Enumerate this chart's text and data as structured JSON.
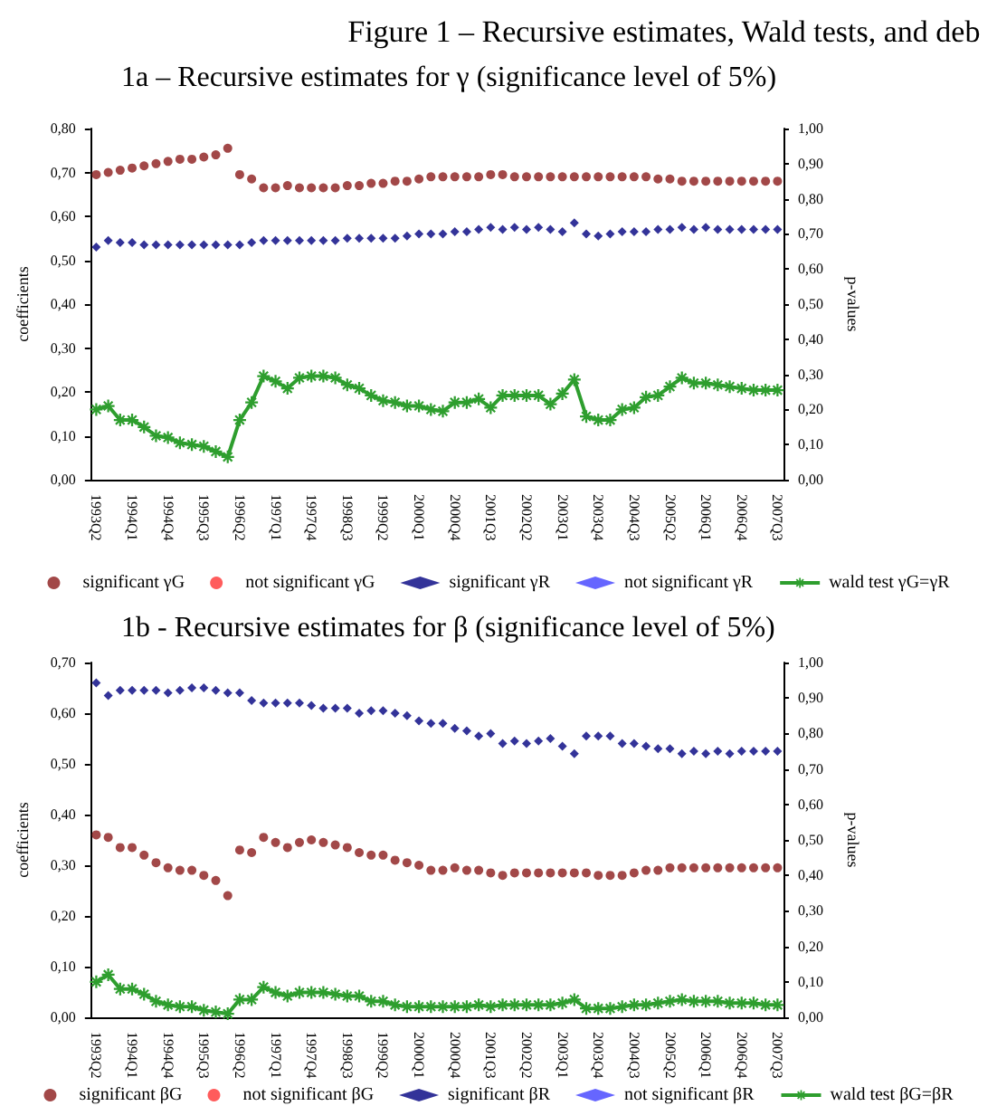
{
  "chart_data": [
    {
      "type": "scatter",
      "title": "Figure 1 – Recursive estimates, Wald tests, and deb",
      "subtitle": "1a – Recursive estimates for γ (significance level of 5%)",
      "ylabel": "coefficients",
      "y2label": "p-values",
      "legend": "bottom",
      "categories": [
        "1993Q2",
        null,
        null,
        "1994Q1",
        null,
        null,
        "1994Q4",
        null,
        null,
        "1995Q3",
        null,
        null,
        "1996Q2",
        null,
        null,
        "1997Q1",
        null,
        null,
        "1997Q4",
        null,
        null,
        "1998Q3",
        null,
        null,
        "1999Q2",
        null,
        null,
        "2000Q1",
        null,
        null,
        "2000Q4",
        null,
        null,
        "2001Q3",
        null,
        null,
        "2002Q2",
        null,
        null,
        "2003Q1",
        null,
        null,
        "2003Q4",
        null,
        null,
        "2004Q3",
        null,
        null,
        "2005Q2",
        null,
        null,
        "2006Q1",
        null,
        null,
        "2006Q4",
        null,
        null,
        "2007Q3"
      ],
      "ylim": [
        0,
        0.8
      ],
      "yticks": [
        {
          "value": 0,
          "label": "0,00"
        },
        {
          "value": 0.1,
          "label": "0,10"
        },
        {
          "value": 0.2,
          "label": "0,20"
        },
        {
          "value": 0.3,
          "label": "0,30"
        },
        {
          "value": 0.4,
          "label": "0,40"
        },
        {
          "value": 0.5,
          "label": "0,50"
        },
        {
          "value": 0.6,
          "label": "0,60"
        },
        {
          "value": 0.7,
          "label": "0,70"
        },
        {
          "value": 0.8,
          "label": "0,80"
        }
      ],
      "y2lim": [
        0,
        1
      ],
      "y2ticks": [
        {
          "value": 0,
          "label": "0,00"
        },
        {
          "value": 0.1,
          "label": "0,10"
        },
        {
          "value": 0.2,
          "label": "0,20"
        },
        {
          "value": 0.3,
          "label": "0,30"
        },
        {
          "value": 0.4,
          "label": "0,40"
        },
        {
          "value": 0.5,
          "label": "0,50"
        },
        {
          "value": 0.6,
          "label": "0,60"
        },
        {
          "value": 0.7,
          "label": "0,70"
        },
        {
          "value": 0.8,
          "label": "0,80"
        },
        {
          "value": 0.9,
          "label": "0,90"
        },
        {
          "value": 1,
          "label": "1,00"
        }
      ],
      "series": [
        {
          "name": "significant γG",
          "type": "scatter",
          "marker": "circle",
          "color": "#8b1a1a",
          "values": [
            0.695,
            0.7,
            0.705,
            0.71,
            0.715,
            0.72,
            0.725,
            0.73,
            0.73,
            0.735,
            0.74,
            0.755,
            0.695,
            0.685,
            0.665,
            0.665,
            0.67,
            0.665,
            0.665,
            0.665,
            0.665,
            0.67,
            0.67,
            0.675,
            0.675,
            0.68,
            0.68,
            0.685,
            0.69,
            0.69,
            0.69,
            0.69,
            0.69,
            0.695,
            0.695,
            0.69,
            0.69,
            0.69,
            0.69,
            0.69,
            0.69,
            0.69,
            0.69,
            0.69,
            0.69,
            0.69,
            0.69,
            0.685,
            0.685,
            0.68,
            0.68,
            0.68,
            0.68,
            0.68,
            0.68,
            0.68,
            0.68,
            0.68
          ]
        },
        {
          "name": "not significant γG",
          "type": "scatter",
          "marker": "circle",
          "color": "#ff3333",
          "values": [
            null,
            null,
            null,
            null,
            null,
            null,
            null,
            null,
            null,
            null,
            null,
            null,
            null,
            null,
            null,
            null,
            null,
            null,
            null,
            null,
            null,
            null,
            null,
            null,
            null,
            null,
            null,
            null,
            null,
            null,
            null,
            null,
            null,
            null,
            null,
            null,
            null,
            null,
            null,
            null,
            null,
            null,
            null,
            null,
            null,
            null,
            null,
            null,
            null,
            null,
            null,
            null,
            null,
            null,
            null,
            null,
            null,
            null
          ]
        },
        {
          "name": "significant γR",
          "type": "scatter",
          "marker": "diamond",
          "color": "#000080",
          "values": [
            0.53,
            0.545,
            0.54,
            0.54,
            0.535,
            0.535,
            0.535,
            0.535,
            0.535,
            0.535,
            0.535,
            0.535,
            0.535,
            0.54,
            0.545,
            0.545,
            0.545,
            0.545,
            0.545,
            0.545,
            0.545,
            0.55,
            0.55,
            0.55,
            0.55,
            0.55,
            0.555,
            0.56,
            0.56,
            0.56,
            0.565,
            0.565,
            0.57,
            0.575,
            0.57,
            0.575,
            0.57,
            0.575,
            0.57,
            0.565,
            0.585,
            0.56,
            0.555,
            0.56,
            0.565,
            0.565,
            0.565,
            0.57,
            0.57,
            0.575,
            0.57,
            0.575,
            0.57,
            0.57,
            0.57,
            0.57,
            0.57,
            0.57
          ]
        },
        {
          "name": "not significant γR",
          "type": "scatter",
          "marker": "diamond",
          "color": "#4040ff",
          "values": [
            null,
            null,
            null,
            null,
            null,
            null,
            null,
            null,
            null,
            null,
            null,
            null,
            null,
            null,
            null,
            null,
            null,
            null,
            null,
            null,
            null,
            null,
            null,
            null,
            null,
            null,
            null,
            null,
            null,
            null,
            null,
            null,
            null,
            null,
            null,
            null,
            null,
            null,
            null,
            null,
            null,
            null,
            null,
            null,
            null,
            null,
            null,
            null,
            null,
            null,
            null,
            null,
            null,
            null,
            null,
            null,
            null,
            null
          ]
        },
        {
          "name": "wald test γG=γR",
          "type": "line",
          "axis": "y2",
          "marker": "star",
          "color": "#2e9e2e",
          "values": [
            0.2,
            0.21,
            0.17,
            0.17,
            0.15,
            0.125,
            0.12,
            0.105,
            0.1,
            0.095,
            0.08,
            0.065,
            0.17,
            0.22,
            0.295,
            0.28,
            0.26,
            0.29,
            0.295,
            0.295,
            0.29,
            0.27,
            0.26,
            0.24,
            0.225,
            0.22,
            0.21,
            0.21,
            0.2,
            0.195,
            0.22,
            0.22,
            0.23,
            0.205,
            0.24,
            0.24,
            0.24,
            0.24,
            0.215,
            0.245,
            0.285,
            0.18,
            0.17,
            0.17,
            0.2,
            0.205,
            0.235,
            0.24,
            0.265,
            0.29,
            0.275,
            0.275,
            0.27,
            0.265,
            0.26,
            0.255,
            0.255,
            0.255
          ]
        }
      ]
    },
    {
      "type": "scatter",
      "subtitle": "1b - Recursive estimates for β (significance level of 5%)",
      "ylabel": "coefficients",
      "y2label": "p-values",
      "legend": "bottom",
      "categories": [
        "1993Q2",
        null,
        null,
        "1994Q1",
        null,
        null,
        "1994Q4",
        null,
        null,
        "1995Q3",
        null,
        null,
        "1996Q2",
        null,
        null,
        "1997Q1",
        null,
        null,
        "1997Q4",
        null,
        null,
        "1998Q3",
        null,
        null,
        "1999Q2",
        null,
        null,
        "2000Q1",
        null,
        null,
        "2000Q4",
        null,
        null,
        "2001Q3",
        null,
        null,
        "2002Q2",
        null,
        null,
        "2003Q1",
        null,
        null,
        "2003Q4",
        null,
        null,
        "2004Q3",
        null,
        null,
        "2005Q2",
        null,
        null,
        "2006Q1",
        null,
        null,
        "2006Q4",
        null,
        null,
        "2007Q3"
      ],
      "ylim": [
        0,
        0.7
      ],
      "yticks": [
        {
          "value": 0,
          "label": "0,00"
        },
        {
          "value": 0.1,
          "label": "0,10"
        },
        {
          "value": 0.2,
          "label": "0,20"
        },
        {
          "value": 0.3,
          "label": "0,30"
        },
        {
          "value": 0.4,
          "label": "0,40"
        },
        {
          "value": 0.5,
          "label": "0,50"
        },
        {
          "value": 0.6,
          "label": "0,60"
        },
        {
          "value": 0.7,
          "label": "0,70"
        }
      ],
      "y2lim": [
        0,
        1
      ],
      "y2ticks": [
        {
          "value": 0,
          "label": "0,00"
        },
        {
          "value": 0.1,
          "label": "0,10"
        },
        {
          "value": 0.2,
          "label": "0,20"
        },
        {
          "value": 0.3,
          "label": "0,30"
        },
        {
          "value": 0.4,
          "label": "0,40"
        },
        {
          "value": 0.5,
          "label": "0,50"
        },
        {
          "value": 0.6,
          "label": "0,60"
        },
        {
          "value": 0.7,
          "label": "0,70"
        },
        {
          "value": 0.8,
          "label": "0,80"
        },
        {
          "value": 0.9,
          "label": "0,90"
        },
        {
          "value": 1,
          "label": "1,00"
        }
      ],
      "series": [
        {
          "name": "significant βG",
          "type": "scatter",
          "marker": "circle",
          "color": "#8b1a1a",
          "values": [
            0.36,
            0.355,
            0.335,
            0.335,
            0.32,
            0.305,
            0.295,
            0.29,
            0.29,
            0.28,
            0.27,
            0.24,
            0.33,
            0.325,
            0.355,
            0.345,
            0.335,
            0.345,
            0.35,
            0.345,
            0.34,
            0.335,
            0.325,
            0.32,
            0.32,
            0.31,
            0.305,
            0.3,
            0.29,
            0.29,
            0.295,
            0.29,
            0.29,
            0.285,
            0.28,
            0.285,
            0.285,
            0.285,
            0.285,
            0.285,
            0.285,
            0.285,
            0.28,
            0.28,
            0.28,
            0.285,
            0.29,
            0.29,
            0.295,
            0.295,
            0.295,
            0.295,
            0.295,
            0.295,
            0.295,
            0.295,
            0.295,
            0.295
          ]
        },
        {
          "name": "not significant βG",
          "type": "scatter",
          "marker": "circle",
          "color": "#ff3333",
          "values": [
            null,
            null,
            null,
            null,
            null,
            null,
            null,
            null,
            null,
            null,
            null,
            null,
            null,
            null,
            null,
            null,
            null,
            null,
            null,
            null,
            null,
            null,
            null,
            null,
            null,
            null,
            null,
            null,
            null,
            null,
            null,
            null,
            null,
            null,
            null,
            null,
            null,
            null,
            null,
            null,
            null,
            null,
            null,
            null,
            null,
            null,
            null,
            null,
            null,
            null,
            null,
            null,
            null,
            null,
            null,
            null,
            null,
            null
          ]
        },
        {
          "name": "significant βR",
          "type": "scatter",
          "marker": "diamond",
          "color": "#000080",
          "values": [
            0.66,
            0.635,
            0.645,
            0.645,
            0.645,
            0.645,
            0.64,
            0.645,
            0.65,
            0.65,
            0.645,
            0.64,
            0.64,
            0.625,
            0.62,
            0.62,
            0.62,
            0.62,
            0.615,
            0.61,
            0.61,
            0.61,
            0.6,
            0.605,
            0.605,
            0.6,
            0.595,
            0.585,
            0.58,
            0.58,
            0.57,
            0.565,
            0.555,
            0.56,
            0.54,
            0.545,
            0.54,
            0.545,
            0.55,
            0.535,
            0.52,
            0.555,
            0.555,
            0.555,
            0.54,
            0.54,
            0.535,
            0.53,
            0.53,
            0.52,
            0.525,
            0.52,
            0.525,
            0.52,
            0.525,
            0.525,
            0.525,
            0.525
          ]
        },
        {
          "name": "not significant βR",
          "type": "scatter",
          "marker": "diamond",
          "color": "#4040ff",
          "values": [
            null,
            null,
            null,
            null,
            null,
            null,
            null,
            null,
            null,
            null,
            null,
            null,
            null,
            null,
            null,
            null,
            null,
            null,
            null,
            null,
            null,
            null,
            null,
            null,
            null,
            null,
            null,
            null,
            null,
            null,
            null,
            null,
            null,
            null,
            null,
            null,
            null,
            null,
            null,
            null,
            null,
            null,
            null,
            null,
            null,
            null,
            null,
            null,
            null,
            null,
            null,
            null,
            null,
            null,
            null,
            null,
            null,
            null
          ]
        },
        {
          "name": "wald test βG=βR",
          "type": "line",
          "axis": "y2",
          "marker": "star",
          "color": "#2e9e2e",
          "values": [
            0.1,
            0.12,
            0.08,
            0.08,
            0.065,
            0.045,
            0.035,
            0.03,
            0.03,
            0.02,
            0.015,
            0.01,
            0.05,
            0.05,
            0.085,
            0.07,
            0.06,
            0.07,
            0.07,
            0.07,
            0.065,
            0.06,
            0.06,
            0.045,
            0.045,
            0.035,
            0.03,
            0.03,
            0.03,
            0.03,
            0.03,
            0.03,
            0.035,
            0.03,
            0.035,
            0.035,
            0.035,
            0.035,
            0.035,
            0.04,
            0.05,
            0.025,
            0.025,
            0.025,
            0.03,
            0.035,
            0.035,
            0.04,
            0.045,
            0.05,
            0.045,
            0.045,
            0.045,
            0.04,
            0.04,
            0.04,
            0.035,
            0.035
          ]
        }
      ]
    }
  ]
}
